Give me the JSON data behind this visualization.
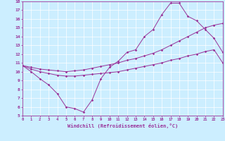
{
  "xlabel": "Windchill (Refroidissement éolien,°C)",
  "xlim": [
    0,
    23
  ],
  "ylim": [
    5,
    18
  ],
  "xticks": [
    0,
    1,
    2,
    3,
    4,
    5,
    6,
    7,
    8,
    9,
    10,
    11,
    12,
    13,
    14,
    15,
    16,
    17,
    18,
    19,
    20,
    21,
    22,
    23
  ],
  "yticks": [
    5,
    6,
    7,
    8,
    9,
    10,
    11,
    12,
    13,
    14,
    15,
    16,
    17,
    18
  ],
  "bg_color": "#cceeff",
  "line_color": "#993399",
  "grid_color": "#ffffff",
  "line_a_x": [
    0,
    1,
    2,
    3,
    4,
    5,
    6,
    7,
    8,
    9,
    10,
    11,
    12,
    13,
    14,
    15,
    16,
    17,
    18,
    19,
    20,
    21,
    22,
    23
  ],
  "line_a_y": [
    10.7,
    10.0,
    9.2,
    8.5,
    7.5,
    6.0,
    5.8,
    5.4,
    6.8,
    9.2,
    10.5,
    11.2,
    12.2,
    12.5,
    14.0,
    14.8,
    16.5,
    17.8,
    17.8,
    16.3,
    15.8,
    14.8,
    13.8,
    12.2
  ],
  "line_b_x": [
    0,
    1,
    2,
    3,
    4,
    5,
    6,
    7,
    8,
    9,
    10,
    11,
    12,
    13,
    14,
    15,
    16,
    17,
    18,
    19,
    20,
    21,
    22,
    23
  ],
  "line_b_y": [
    10.7,
    10.3,
    10.0,
    9.8,
    9.6,
    9.5,
    9.5,
    9.6,
    9.7,
    9.8,
    9.9,
    10.0,
    10.2,
    10.4,
    10.6,
    10.8,
    11.0,
    11.3,
    11.5,
    11.8,
    12.0,
    12.3,
    12.5,
    11.0
  ],
  "line_c_x": [
    0,
    1,
    2,
    3,
    4,
    5,
    6,
    7,
    8,
    9,
    10,
    11,
    12,
    13,
    14,
    15,
    16,
    17,
    18,
    19,
    20,
    21,
    22,
    23
  ],
  "line_c_y": [
    10.7,
    10.5,
    10.3,
    10.2,
    10.1,
    10.0,
    10.1,
    10.2,
    10.4,
    10.6,
    10.8,
    11.0,
    11.3,
    11.5,
    11.8,
    12.1,
    12.5,
    13.0,
    13.5,
    14.0,
    14.5,
    15.0,
    15.3,
    15.5
  ]
}
